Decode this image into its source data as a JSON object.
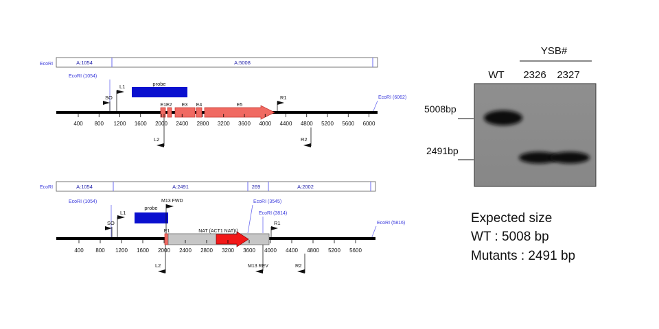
{
  "colors": {
    "ecori_label": "#3a3adc",
    "backbone": "#000000",
    "probe": "#0a10cf",
    "exon": "#f06a62",
    "exon_edge": "#c0302a",
    "nat_gray": "#c6c6c6",
    "nat_red": "#f21818",
    "gel_bg": "#8c8c8c"
  },
  "map_top": {
    "ecori_left": "EcoRI",
    "seg1": "A:1054",
    "seg2": "A:5008",
    "ecori_1054": "EcoRI (1054)",
    "ecori_right": "EcoRI (6062)",
    "so": "SO",
    "l1": "L1",
    "probe": "probe",
    "e1e2": "E1E2",
    "e3": "E3",
    "e4": "E4",
    "e5": "E5",
    "r1": "R1",
    "l2": "L2",
    "r2": "R2",
    "ticks": [
      "400",
      "800",
      "1200",
      "1600",
      "2000",
      "2400",
      "2800",
      "3200",
      "3600",
      "4000",
      "4400",
      "4800",
      "5200",
      "5600",
      "6000"
    ]
  },
  "map_bottom": {
    "ecori_left": "EcoRI",
    "seg1": "A:1054",
    "seg2": "A:2491",
    "seg3": "269",
    "seg4": "A:2002",
    "ecori_1054": "EcoRI (1054)",
    "ecori_3545": "EcoRI (3545)",
    "ecori_3814": "EcoRI (3814)",
    "ecori_right": "EcoRI (5816)",
    "so": "SO",
    "l1": "L1",
    "probe": "probe",
    "m13_fwd": "M13 FWD",
    "e1": "E1",
    "nat": "NAT (ACT1 NAT)t)",
    "r1": "R1",
    "l2": "L2",
    "m13_rev": "M13 REV",
    "r2": "R2",
    "ticks": [
      "400",
      "800",
      "1200",
      "1600",
      "2000",
      "2400",
      "2800",
      "3200",
      "3600",
      "4000",
      "4400",
      "4800",
      "5200",
      "5600"
    ]
  },
  "gel": {
    "ysb": "YSB#",
    "lane_wt": "WT",
    "lane_2326": "2326",
    "lane_2327": "2327",
    "marker_5008": "5008bp",
    "marker_2491": "2491bp"
  },
  "expected": {
    "line1": "Expected size",
    "line2": "WT : 5008 bp",
    "line3": "Mutants : 2491 bp"
  }
}
